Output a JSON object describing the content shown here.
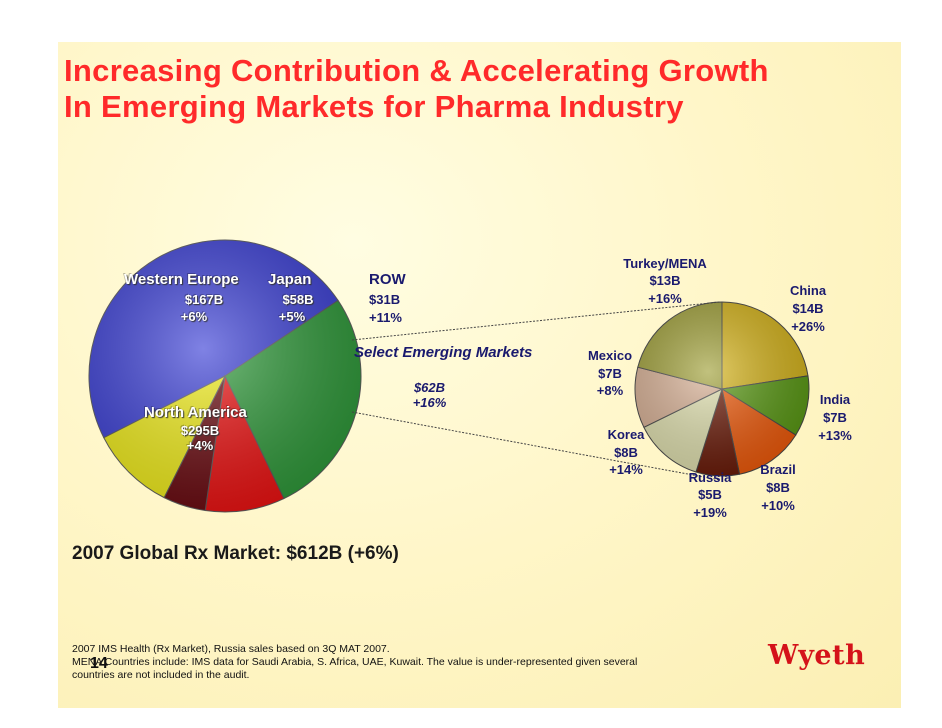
{
  "title_line1": "Increasing Contribution & Accelerating Growth",
  "title_line2": "In Emerging Markets for Pharma Industry",
  "summary": "2007 Global Rx Market:  $612B (+6%)",
  "footnote_line1": "2007 IMS Health (Rx Market), Russia sales based on 3Q MAT 2007.",
  "footnote_line2": "MENA Countries include: IMS data for Saudi Arabia, S. Africa, UAE, Kuwait.  The value is under-represented given several",
  "footnote_line3": "countries are not included in the audit.",
  "page_number": "14",
  "logo_text": "Wyeth",
  "chart_data": [
    {
      "type": "pie",
      "title": "2007 Global Rx Market:  $612B (+6%)",
      "unit": "$B",
      "slices": [
        {
          "name": "North America",
          "value": 295,
          "value_label": "$295B",
          "growth": "+4%",
          "color": "#3b3fd6"
        },
        {
          "name": "Western Europe",
          "value": 167,
          "value_label": "$167B",
          "growth": "+6%",
          "color": "#2f9a3a"
        },
        {
          "name": "Japan",
          "value": 58,
          "value_label": "$58B",
          "growth": "+5%",
          "color": "#ee1111"
        },
        {
          "name": "ROW",
          "value": 31,
          "value_label": "$31B",
          "growth": "+11%",
          "color": "#6a0a10"
        },
        {
          "name": "Select Emerging Markets",
          "value": 62,
          "value_label": "$62B",
          "growth": "+16%",
          "color": "#f2ee1a"
        }
      ]
    },
    {
      "type": "pie",
      "title": "Select Emerging Markets",
      "unit": "$B",
      "slices": [
        {
          "name": "China",
          "value": 14,
          "value_label": "$14B",
          "growth": "+26%",
          "color": "#d6b41a"
        },
        {
          "name": "India",
          "value": 7,
          "value_label": "$7B",
          "growth": "+13%",
          "color": "#5a9a14"
        },
        {
          "name": "Brazil",
          "value": 8,
          "value_label": "$8B",
          "growth": "+10%",
          "color": "#f05a0a"
        },
        {
          "name": "Russia",
          "value": 5,
          "value_label": "$5B",
          "growth": "+19%",
          "color": "#6a1a08"
        },
        {
          "name": "Korea",
          "value": 8,
          "value_label": "$8B",
          "growth": "+14%",
          "color": "#e2e2b0"
        },
        {
          "name": "Mexico",
          "value": 7,
          "value_label": "$7B",
          "growth": "+8%",
          "color": "#d8b094"
        },
        {
          "name": "Turkey/MENA",
          "value": 13,
          "value_label": "$13B",
          "growth": "+16%",
          "color": "#a0a038"
        }
      ]
    }
  ]
}
